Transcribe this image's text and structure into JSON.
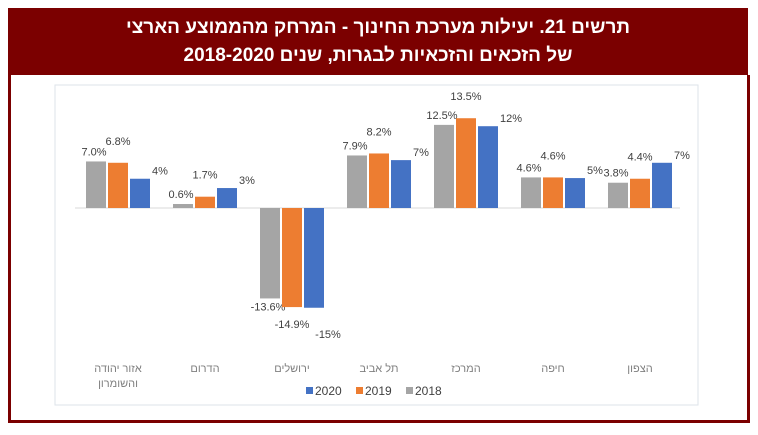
{
  "title_lines": [
    "תרשים 21. יעילות מערכת החינוך - המרחק מהממוצע הארצי",
    "של הזכאים והזכאיות לבגרות, שנים 2018-2020"
  ],
  "chart_data": {
    "type": "bar",
    "title": "תרשים 21. יעילות מערכת החינוך - המרחק מהממוצע הארצי של הזכאים והזכאיות לבגרות, שנים 2018-2020",
    "categories": [
      [
        "אזור יהודה",
        "והשומרון"
      ],
      [
        "הדרום"
      ],
      [
        "ירושלים"
      ],
      [
        "תל אביב"
      ],
      [
        "המרכז"
      ],
      [
        "חיפה"
      ],
      [
        "הצפון"
      ]
    ],
    "series": [
      {
        "name": "2018",
        "color": "#a5a5a5",
        "values": [
          7.0,
          0.6,
          -13.6,
          7.9,
          12.5,
          4.6,
          3.8
        ],
        "labels": [
          "7.0%",
          "0.6%",
          "-13.6%",
          "7.9%",
          "12.5%",
          "4.6%",
          "3.8%"
        ]
      },
      {
        "name": "2019",
        "color": "#ed7d31",
        "values": [
          6.8,
          1.7,
          -14.9,
          8.2,
          13.5,
          4.6,
          4.4
        ],
        "labels": [
          "6.8%",
          "1.7%",
          "-14.9%",
          "8.2%",
          "13.5%",
          "4.6%",
          "4.4%"
        ]
      },
      {
        "name": "2020",
        "color": "#4472c4",
        "values": [
          4.4,
          3.0,
          -15.0,
          7.2,
          12.3,
          4.5,
          6.8
        ],
        "labels": [
          "4%",
          "3%",
          "-15%",
          "7%",
          "12%",
          "5%",
          "7%"
        ]
      }
    ],
    "legend_order": [
      "2020",
      "2019",
      "2018"
    ],
    "legend_position": "bottom",
    "xlabel": "",
    "ylabel": "",
    "ylim": [
      -16,
      15
    ],
    "grid": false
  }
}
